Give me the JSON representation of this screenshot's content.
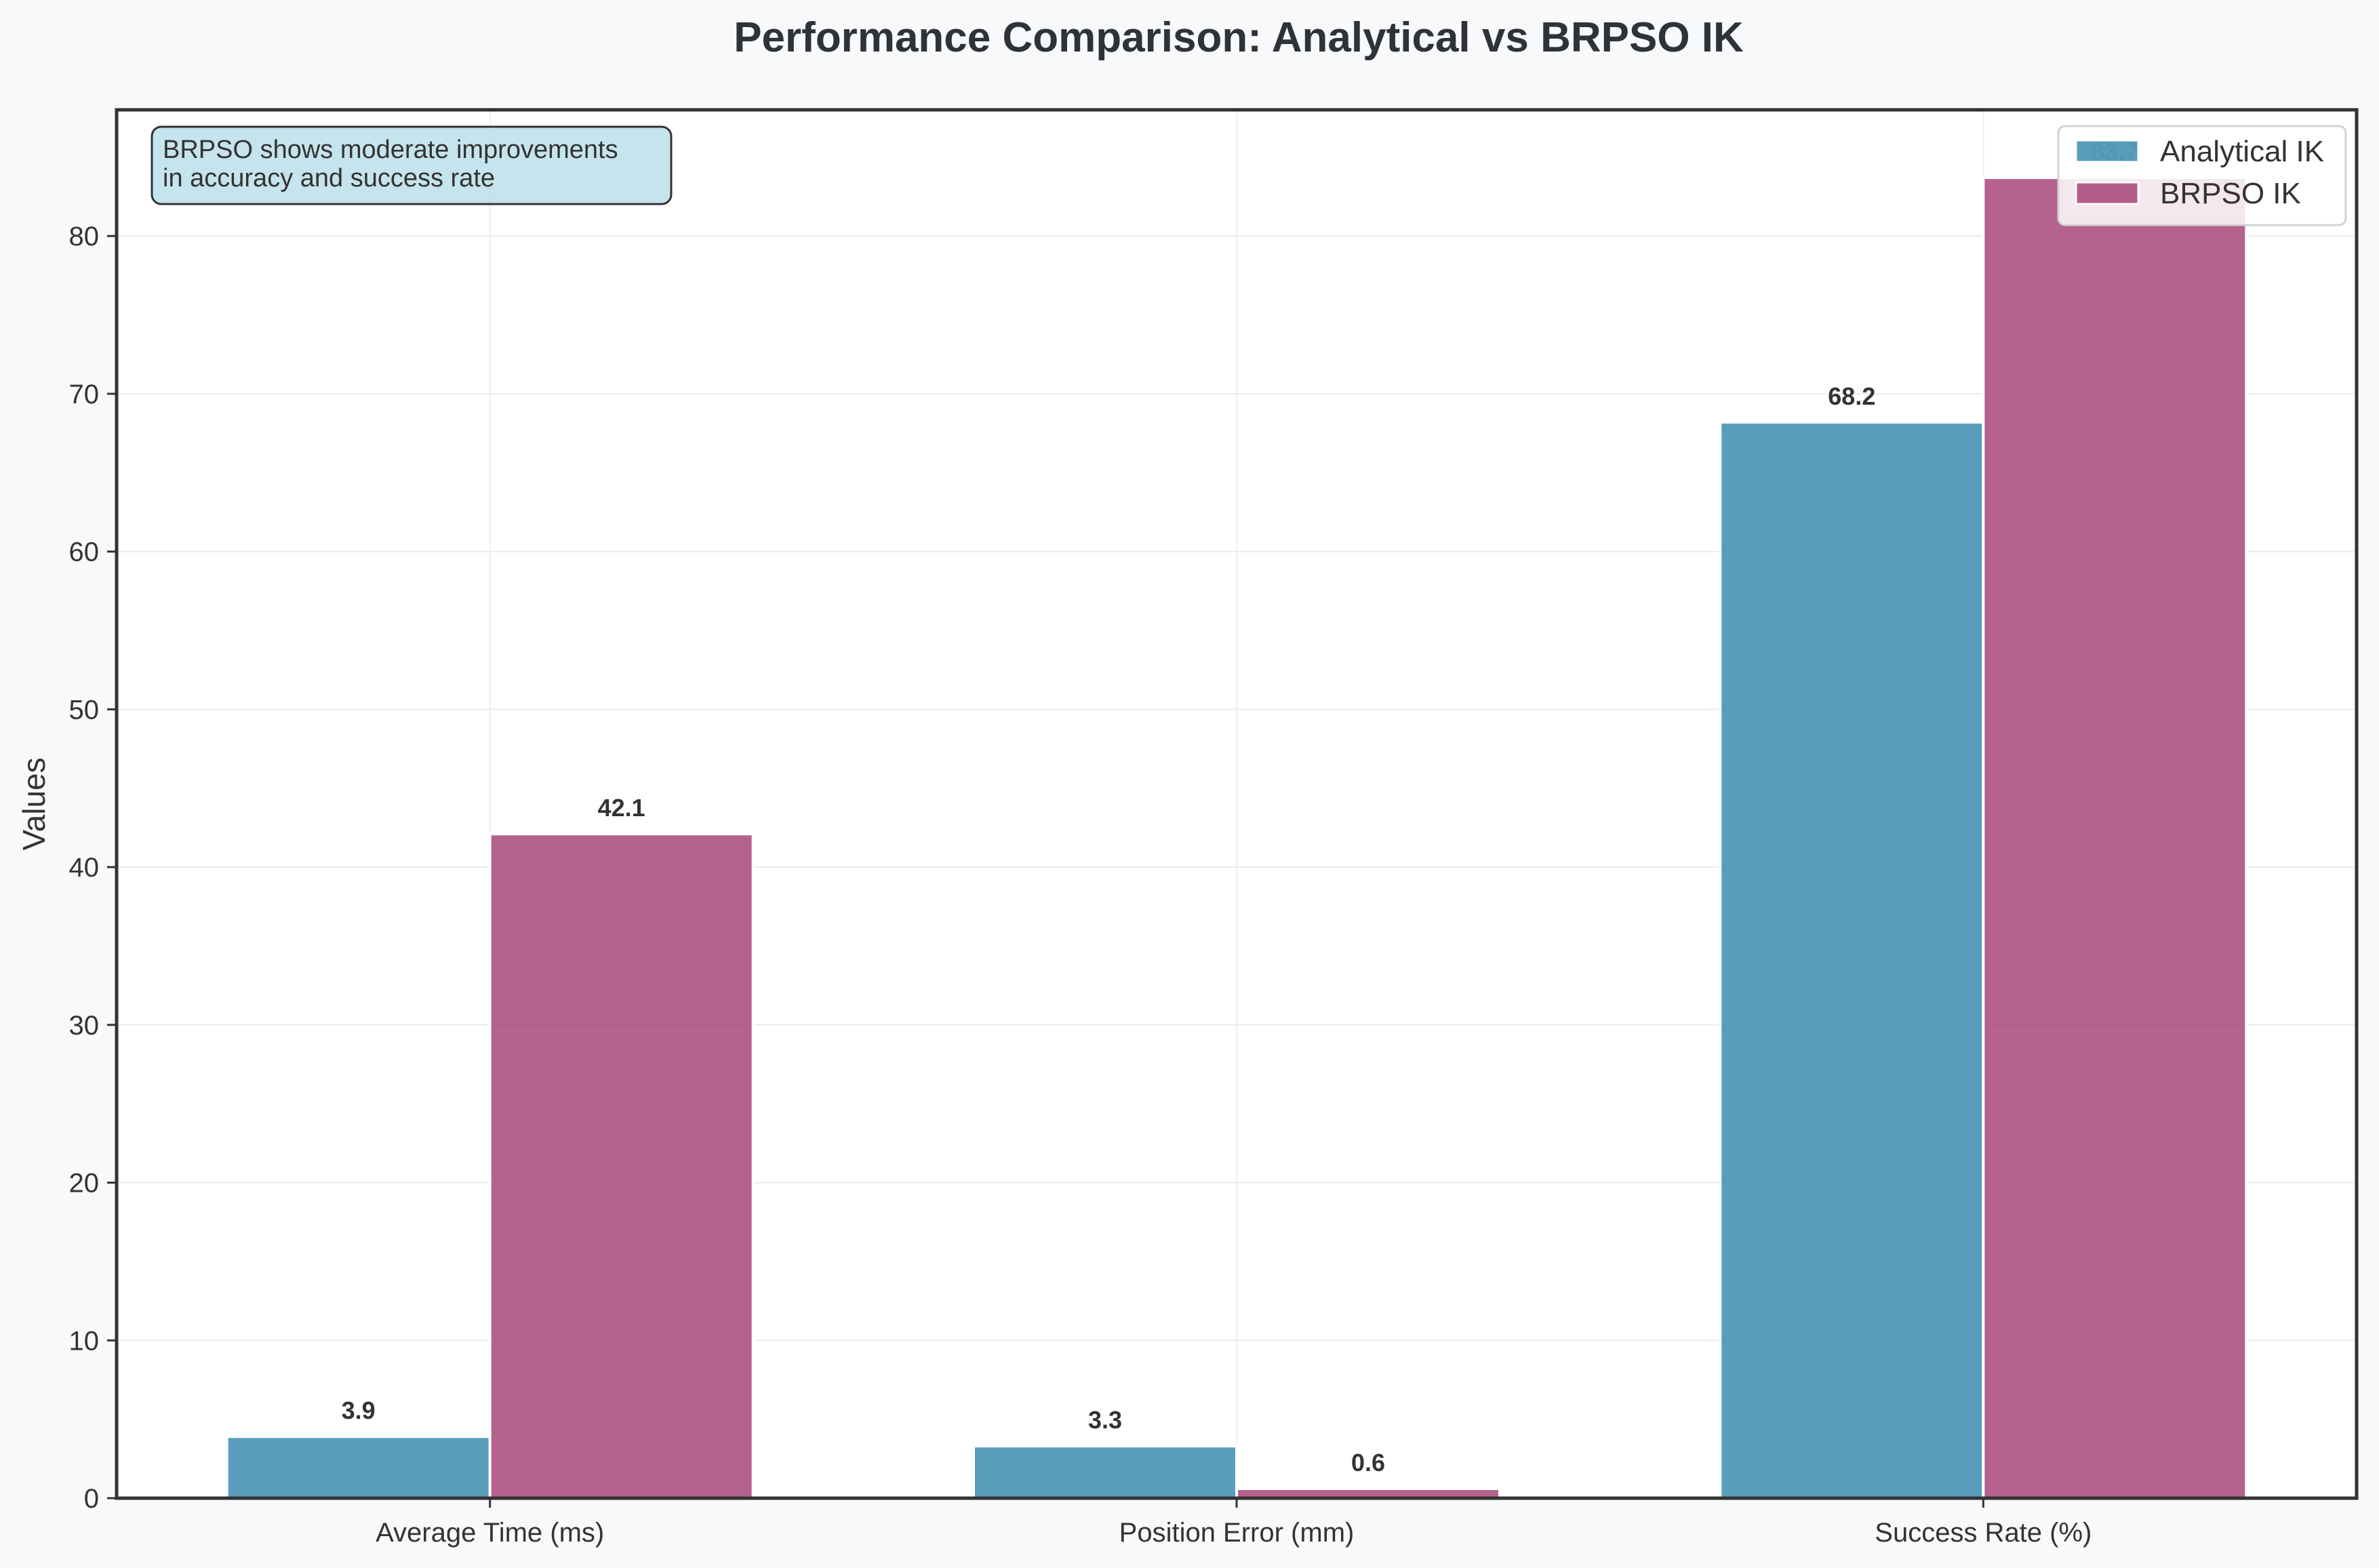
{
  "chart_data": {
    "type": "bar",
    "title": "Performance Comparison: Analytical vs BRPSO IK",
    "xlabel": "",
    "ylabel": "Values",
    "ylim": [
      0,
      88
    ],
    "yticks": [
      0,
      10,
      20,
      30,
      40,
      50,
      60,
      70,
      80
    ],
    "categories": [
      "Average Time (ms)",
      "Position Error (mm)",
      "Success Rate (%)"
    ],
    "series": [
      {
        "name": "Analytical IK",
        "color": "#2e86ab",
        "values": [
          3.9,
          3.3,
          68.2
        ]
      },
      {
        "name": "BRPSO IK",
        "color": "#a23b72",
        "values": [
          42.1,
          0.6,
          83.7
        ]
      }
    ],
    "grid": true,
    "legend_position": "top-right",
    "annotation": {
      "lines": [
        "BRPSO shows moderate improvements",
        "in accuracy and success rate"
      ],
      "position": "top-left"
    },
    "value_label_format": "one-decimal"
  }
}
